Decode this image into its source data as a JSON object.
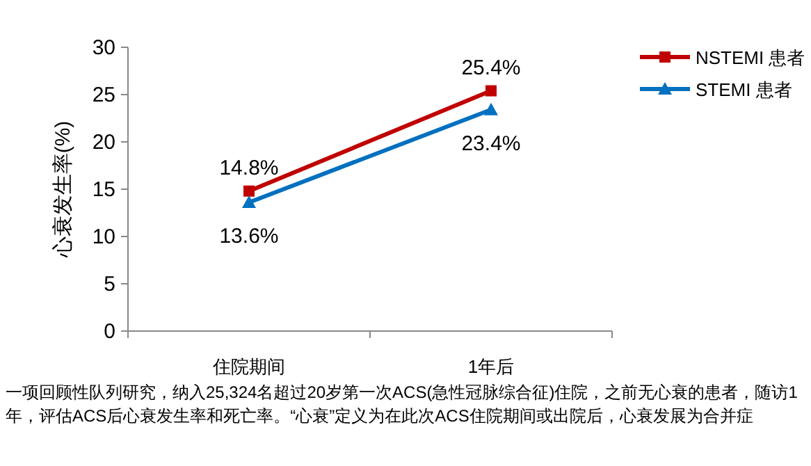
{
  "chart_data": {
    "type": "line",
    "ylabel": "心衰发生率(%)",
    "categories": [
      "住院期间",
      "1年后"
    ],
    "series": [
      {
        "name": "NSTEMI 患者",
        "color": "#c00000",
        "marker": "square",
        "values": [
          14.8,
          25.4
        ],
        "value_labels": [
          "14.8%",
          "25.4%"
        ]
      },
      {
        "name": "STEMI 患者",
        "color": "#0070c0",
        "marker": "triangle",
        "values": [
          13.6,
          23.4
        ],
        "value_labels": [
          "13.6%",
          "23.4%"
        ]
      }
    ],
    "ylim": [
      0,
      30
    ],
    "yticks": [
      0,
      5,
      10,
      15,
      20,
      25,
      30
    ],
    "grid": false,
    "legend": "top right",
    "annotations": [
      "一项回顾性队列研究，纳入25,324名超过20岁第一次ACS(急性冠脉综合征)住院，之前无心衰的患者，随访1年，评估ACS后心衰发生率和死亡率。“心衰”定义为在此次ACS住院期间或出院后，心衰发展为合并症"
    ]
  }
}
